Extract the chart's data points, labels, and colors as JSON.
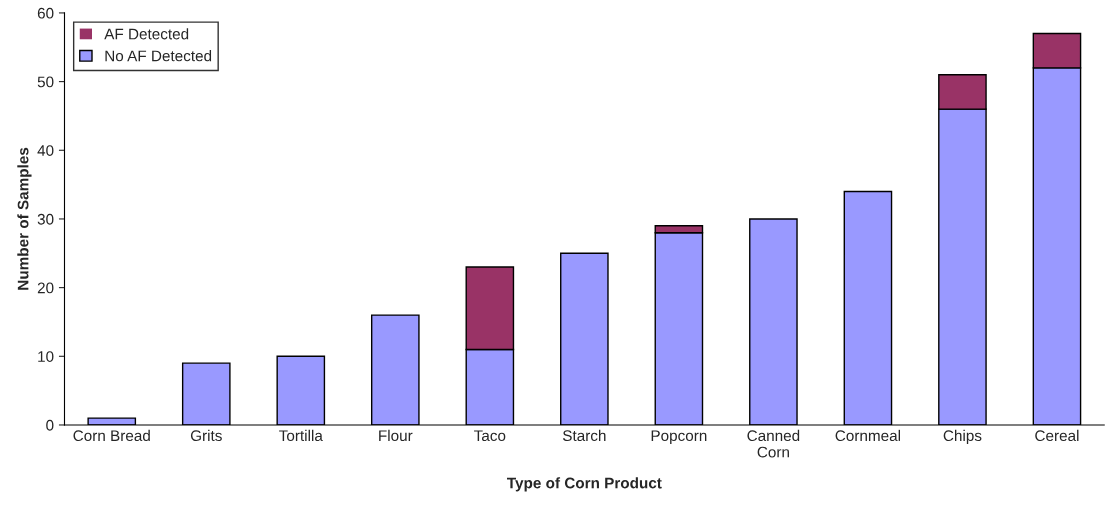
{
  "chart_data": {
    "type": "bar",
    "stacked": true,
    "xlabel": "Type of Corn Product",
    "ylabel": "Number of Samples",
    "categories": [
      "Corn Bread",
      "Grits",
      "Tortilla",
      "Flour",
      "Taco",
      "Starch",
      "Popcorn",
      "Canned\nCorn",
      "Cornmeal",
      "Chips",
      "Cereal"
    ],
    "series": [
      {
        "name": "No AF Detected",
        "color": "#9999ff",
        "values": [
          1,
          9,
          10,
          16,
          11,
          25,
          28,
          30,
          34,
          46,
          52
        ]
      },
      {
        "name": "AF Detected",
        "color": "#993366",
        "values": [
          0,
          0,
          0,
          0,
          12,
          0,
          1,
          0,
          0,
          5,
          5
        ]
      }
    ],
    "ylim": [
      0,
      60
    ],
    "yticks": [
      0,
      10,
      20,
      30,
      40,
      50,
      60
    ],
    "grid": false,
    "legend": "top left"
  }
}
